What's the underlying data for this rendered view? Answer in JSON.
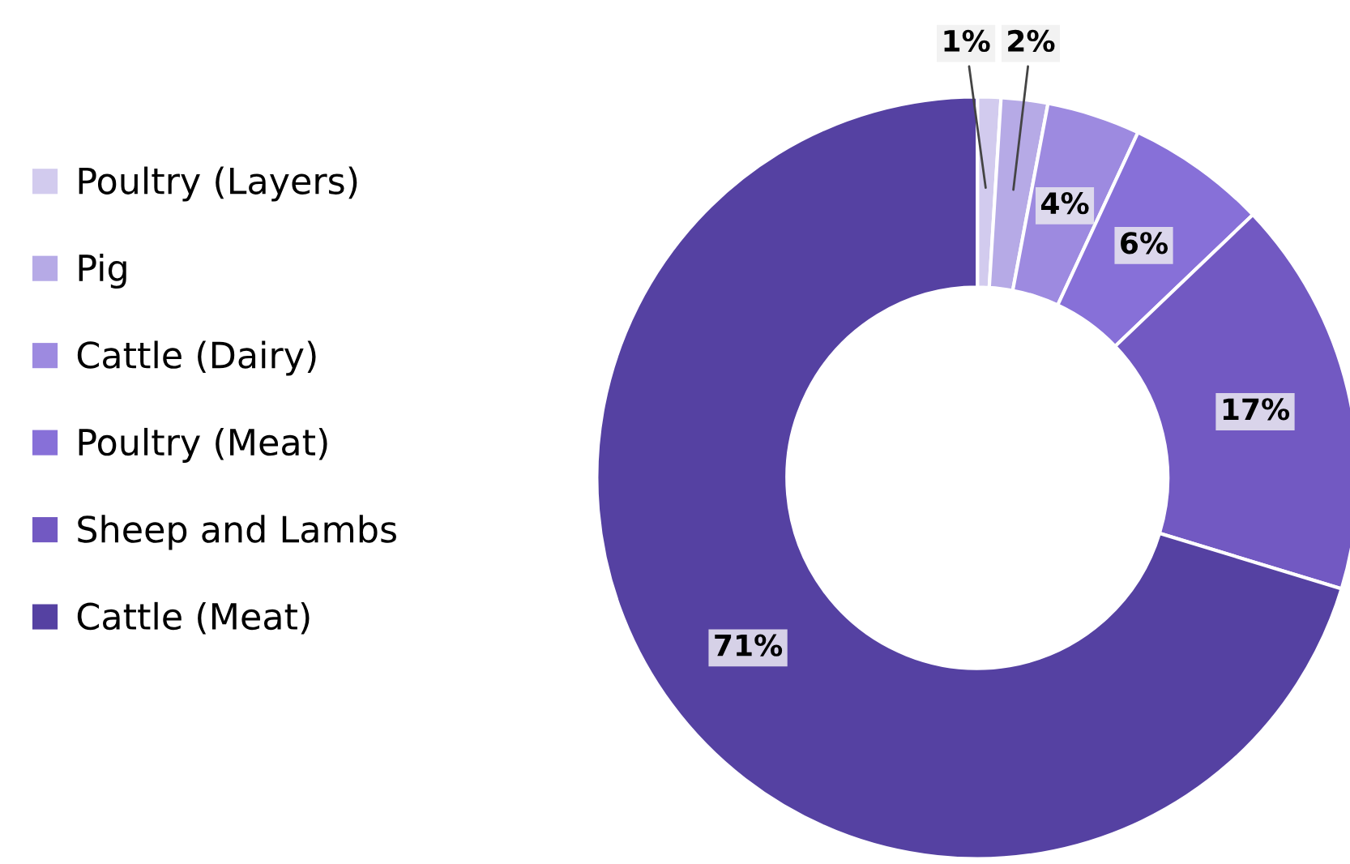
{
  "chart_data": {
    "type": "donut",
    "categories": [
      "Poultry (Layers)",
      "Pig",
      "Cattle (Dairy)",
      "Poultry (Meat)",
      "Sheep and Lambs",
      "Cattle (Meat)"
    ],
    "values": [
      1,
      2,
      4,
      6,
      17,
      71
    ],
    "colors": [
      "#d2cbee",
      "#b6aae6",
      "#9d8ae0",
      "#8770d8",
      "#7259c2",
      "#5541a2"
    ],
    "value_labels": [
      "1%",
      "2%",
      "4%",
      "6%",
      "17%",
      "71%"
    ],
    "legend": "left"
  }
}
